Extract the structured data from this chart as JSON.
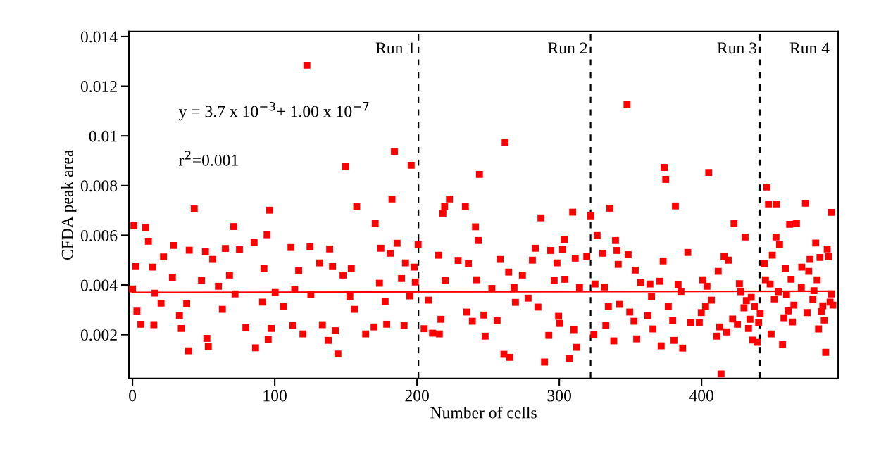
{
  "chart_data": {
    "type": "scatter",
    "xlabel": "Number of cells",
    "ylabel": "CFDA peak area",
    "xlim": [
      -2.5,
      496
    ],
    "ylim": [
      0.00024,
      0.0142
    ],
    "xticks": [
      0,
      100,
      200,
      300,
      400
    ],
    "yticks": [
      0.002,
      0.004,
      0.006,
      0.008,
      0.01,
      0.012,
      0.014
    ],
    "grid": false,
    "series": [
      {
        "marker": "square",
        "color": "#ff0000",
        "x": [
          1.0,
          9.2,
          11.2,
          2.3,
          14.2,
          29.0,
          21.8,
          0,
          15.8,
          3.1,
          5.9,
          15.0,
          20.1,
          28.1,
          43.4,
          39.9,
          51.3,
          56.4,
          48.5,
          38.1,
          33.0,
          34.3,
          39.4,
          52.3,
          53.3,
          63.2,
          60.4,
          65.3,
          71.1,
          75.2,
          68.2,
          72.1,
          79.7,
          86.5,
          95.4,
          96.4,
          94.6,
          85.5,
          92.4,
          100.3,
          91.4,
          97.5,
          106.1,
          111.4,
          116.8,
          114.0,
          124.8,
          125.4,
          119.8,
          112.7,
          122.6,
          138.6,
          131.5,
          140.6,
          153.8,
          148.0,
          149.8,
          157.6,
          170.6,
          182.4,
          184.1,
          195.9,
          144.4,
          137.6,
          142.6,
          133.5,
          152.8,
          156.0,
          163.9,
          169.8,
          173.6,
          174.6,
          186.0,
          181.2,
          191.9,
          198.0,
          189.1,
          178.7,
          190.9,
          177.6,
          200.8,
          198.8,
          194.9,
          205.0,
          210.9,
          215.7,
          215.2,
          222.8,
          219.4,
          218.2,
          228.9,
          219.8,
          208.0,
          216.8,
          234.0,
          241.1,
          243.1,
          243.9,
          236.1,
          241.9,
          235.0,
          238.9,
          247.9,
          247.0,
          252.6,
          258.4,
          261.9,
          261.1,
          256.3,
          264.4,
          265.2,
          274.1,
          268.2,
          269.2,
          278.1,
          283.2,
          287.1,
          281.1,
          289.6,
          292.6,
          285.0,
          293.9,
          298.4,
          302.3,
          303.5,
          296.4,
          303.9,
          309.4,
          311.2,
          319.3,
          322.1,
          314.2,
          312.2,
          307.1,
          310.2,
          300.3,
          299.5,
          326.6,
          330.5,
          335.5,
          339.5,
          340.5,
          348.4,
          347.6,
          341.4,
          325.1,
          331.7,
          334.5,
          332.7,
          324.3,
          338.3,
          342.4,
          349.5,
          354.4,
          352.5,
          353.4,
          357.2,
          363.7,
          364.8,
          362.2,
          365.8,
          371.6,
          373.8,
          374.8,
          381.6,
          373.0,
          370.7,
          376.6,
          380.6,
          386.7,
          383.5,
          390.3,
          385.5,
          379.7,
          392.4,
          405.0,
          422.8,
          430.6,
          415.8,
          418.8,
          411.7,
          400.8,
          403.8,
          413.7,
          410.7,
          417.7,
          412.7,
          406.9,
          402.8,
          399.8,
          398.4,
          421.8,
          425.2,
          426.6,
          427.6,
          429.8,
          434.0,
          431.5,
          434.9,
          433.0,
          436.0,
          439.1,
          437.4,
          440.1,
          441.2,
          445.9,
          447.0,
          452.6,
          444.1,
          444.9,
          448.2,
          449.7,
          452.3,
          454.8,
          448.9,
          451.1,
          453.9,
          456.9,
          457.9,
          458.9,
          459.7,
          461.9,
          466.7,
          460.9,
          462.9,
          464.9,
          463.9,
          473.0,
          470.4,
          470.1,
          474.2,
          475.3,
          476.2,
          478.2,
          479.0,
          480.2,
          481.2,
          482.2,
          483.2,
          484.2,
          485.2,
          486.2,
          487.2,
          488.3,
          489.3,
          491.3,
          490.3,
          491.3,
          492.3
        ],
        "values": [
          0.00638,
          0.00631,
          0.00576,
          0.00474,
          0.00472,
          0.00559,
          0.00513,
          0.00384,
          0.00367,
          0.00295,
          0.00242,
          0.0024,
          0.00327,
          0.00431,
          0.00706,
          0.0054,
          0.00534,
          0.00503,
          0.00419,
          0.00324,
          0.00277,
          0.00225,
          0.00135,
          0.00185,
          0.00152,
          0.00302,
          0.00395,
          0.00547,
          0.00635,
          0.00542,
          0.0044,
          0.00364,
          0.00228,
          0.00147,
          0.0018,
          0.00701,
          0.00602,
          0.00571,
          0.00466,
          0.0037,
          0.00331,
          0.00225,
          0.00315,
          0.00551,
          0.00457,
          0.00383,
          0.00554,
          0.00361,
          0.00203,
          0.00237,
          0.01284,
          0.00545,
          0.00489,
          0.00474,
          0.00466,
          0.0044,
          0.00876,
          0.00715,
          0.00647,
          0.00746,
          0.00937,
          0.00882,
          0.00122,
          0.00177,
          0.00216,
          0.0024,
          0.00353,
          0.00302,
          0.00203,
          0.00231,
          0.00407,
          0.00548,
          0.00568,
          0.00528,
          0.00489,
          0.00472,
          0.00426,
          0.00242,
          0.00237,
          0.00333,
          0.00562,
          0.00412,
          0.00356,
          0.00224,
          0.00206,
          0.00203,
          0.0052,
          0.00746,
          0.00715,
          0.00689,
          0.00499,
          0.00418,
          0.00339,
          0.00262,
          0.00715,
          0.00634,
          0.00579,
          0.00845,
          0.00486,
          0.00421,
          0.00291,
          0.00254,
          0.00194,
          0.00279,
          0.00386,
          0.00503,
          0.00975,
          0.00121,
          0.00256,
          0.00452,
          0.00109,
          0.0044,
          0.0039,
          0.0033,
          0.00347,
          0.00548,
          0.0067,
          0.005,
          0.0009,
          0.00197,
          0.00311,
          0.00539,
          0.00489,
          0.00542,
          0.00584,
          0.00418,
          0.00423,
          0.00693,
          0.00508,
          0.00514,
          0.00678,
          0.0039,
          0.00149,
          0.00104,
          0.0022,
          0.00245,
          0.00274,
          0.00599,
          0.00528,
          0.00709,
          0.00579,
          0.00539,
          0.00522,
          0.01125,
          0.00483,
          0.00404,
          0.00392,
          0.00313,
          0.00237,
          0.002,
          0.00175,
          0.00322,
          0.00291,
          0.00183,
          0.00254,
          0.0046,
          0.00409,
          0.00404,
          0.00353,
          0.00276,
          0.00223,
          0.00155,
          0.00873,
          0.00825,
          0.00718,
          0.00497,
          0.00415,
          0.00314,
          0.00177,
          0.00146,
          0.00401,
          0.00531,
          0.00374,
          0.00256,
          0.00248,
          0.00853,
          0.00647,
          0.00593,
          0.00514,
          0.005,
          0.00455,
          0.00421,
          0.00395,
          0.00042,
          0.00194,
          0.00211,
          0.00231,
          0.00339,
          0.00313,
          0.00289,
          0.00248,
          0.00263,
          0.00242,
          0.00405,
          0.00373,
          0.00308,
          0.00262,
          0.00337,
          0.0035,
          0.00225,
          0.00178,
          0.00169,
          0.00313,
          0.00249,
          0.00285,
          0.00794,
          0.00726,
          0.00726,
          0.00486,
          0.00421,
          0.00404,
          0.0052,
          0.00593,
          0.00562,
          0.00203,
          0.00344,
          0.00373,
          0.0016,
          0.00268,
          0.00466,
          0.00361,
          0.00644,
          0.00647,
          0.00296,
          0.00423,
          0.00319,
          0.00251,
          0.00729,
          0.00472,
          0.00391,
          0.00289,
          0.00455,
          0.00503,
          0.00341,
          0.00377,
          0.00569,
          0.00421,
          0.00223,
          0.00511,
          0.00293,
          0.00316,
          0.00259,
          0.00129,
          0.00545,
          0.00514,
          0.00692,
          0.00331,
          0.00364,
          0.00319
        ]
      },
      {
        "type": "line",
        "marker": "none",
        "color": "#ff0000",
        "x": [
          0,
          492
        ],
        "values": [
          0.0037,
          0.00375
        ]
      }
    ],
    "ref_lines": [
      {
        "axis": "x",
        "value": 201,
        "color": "#000000",
        "line_style": "dashed",
        "label": "Run 1"
      },
      {
        "axis": "x",
        "value": 322,
        "color": "#000000",
        "line_style": "dashed",
        "label": "Run 2"
      },
      {
        "axis": "x",
        "value": 441,
        "color": "#000000",
        "line_style": "dashed",
        "label": "Run 3"
      }
    ],
    "annotations": [
      "Run 4",
      "y = 3.7 x 10$^{−3}$+ 1.00 x 10$^{−7}$",
      "r$^{2}$=0.001"
    ]
  }
}
